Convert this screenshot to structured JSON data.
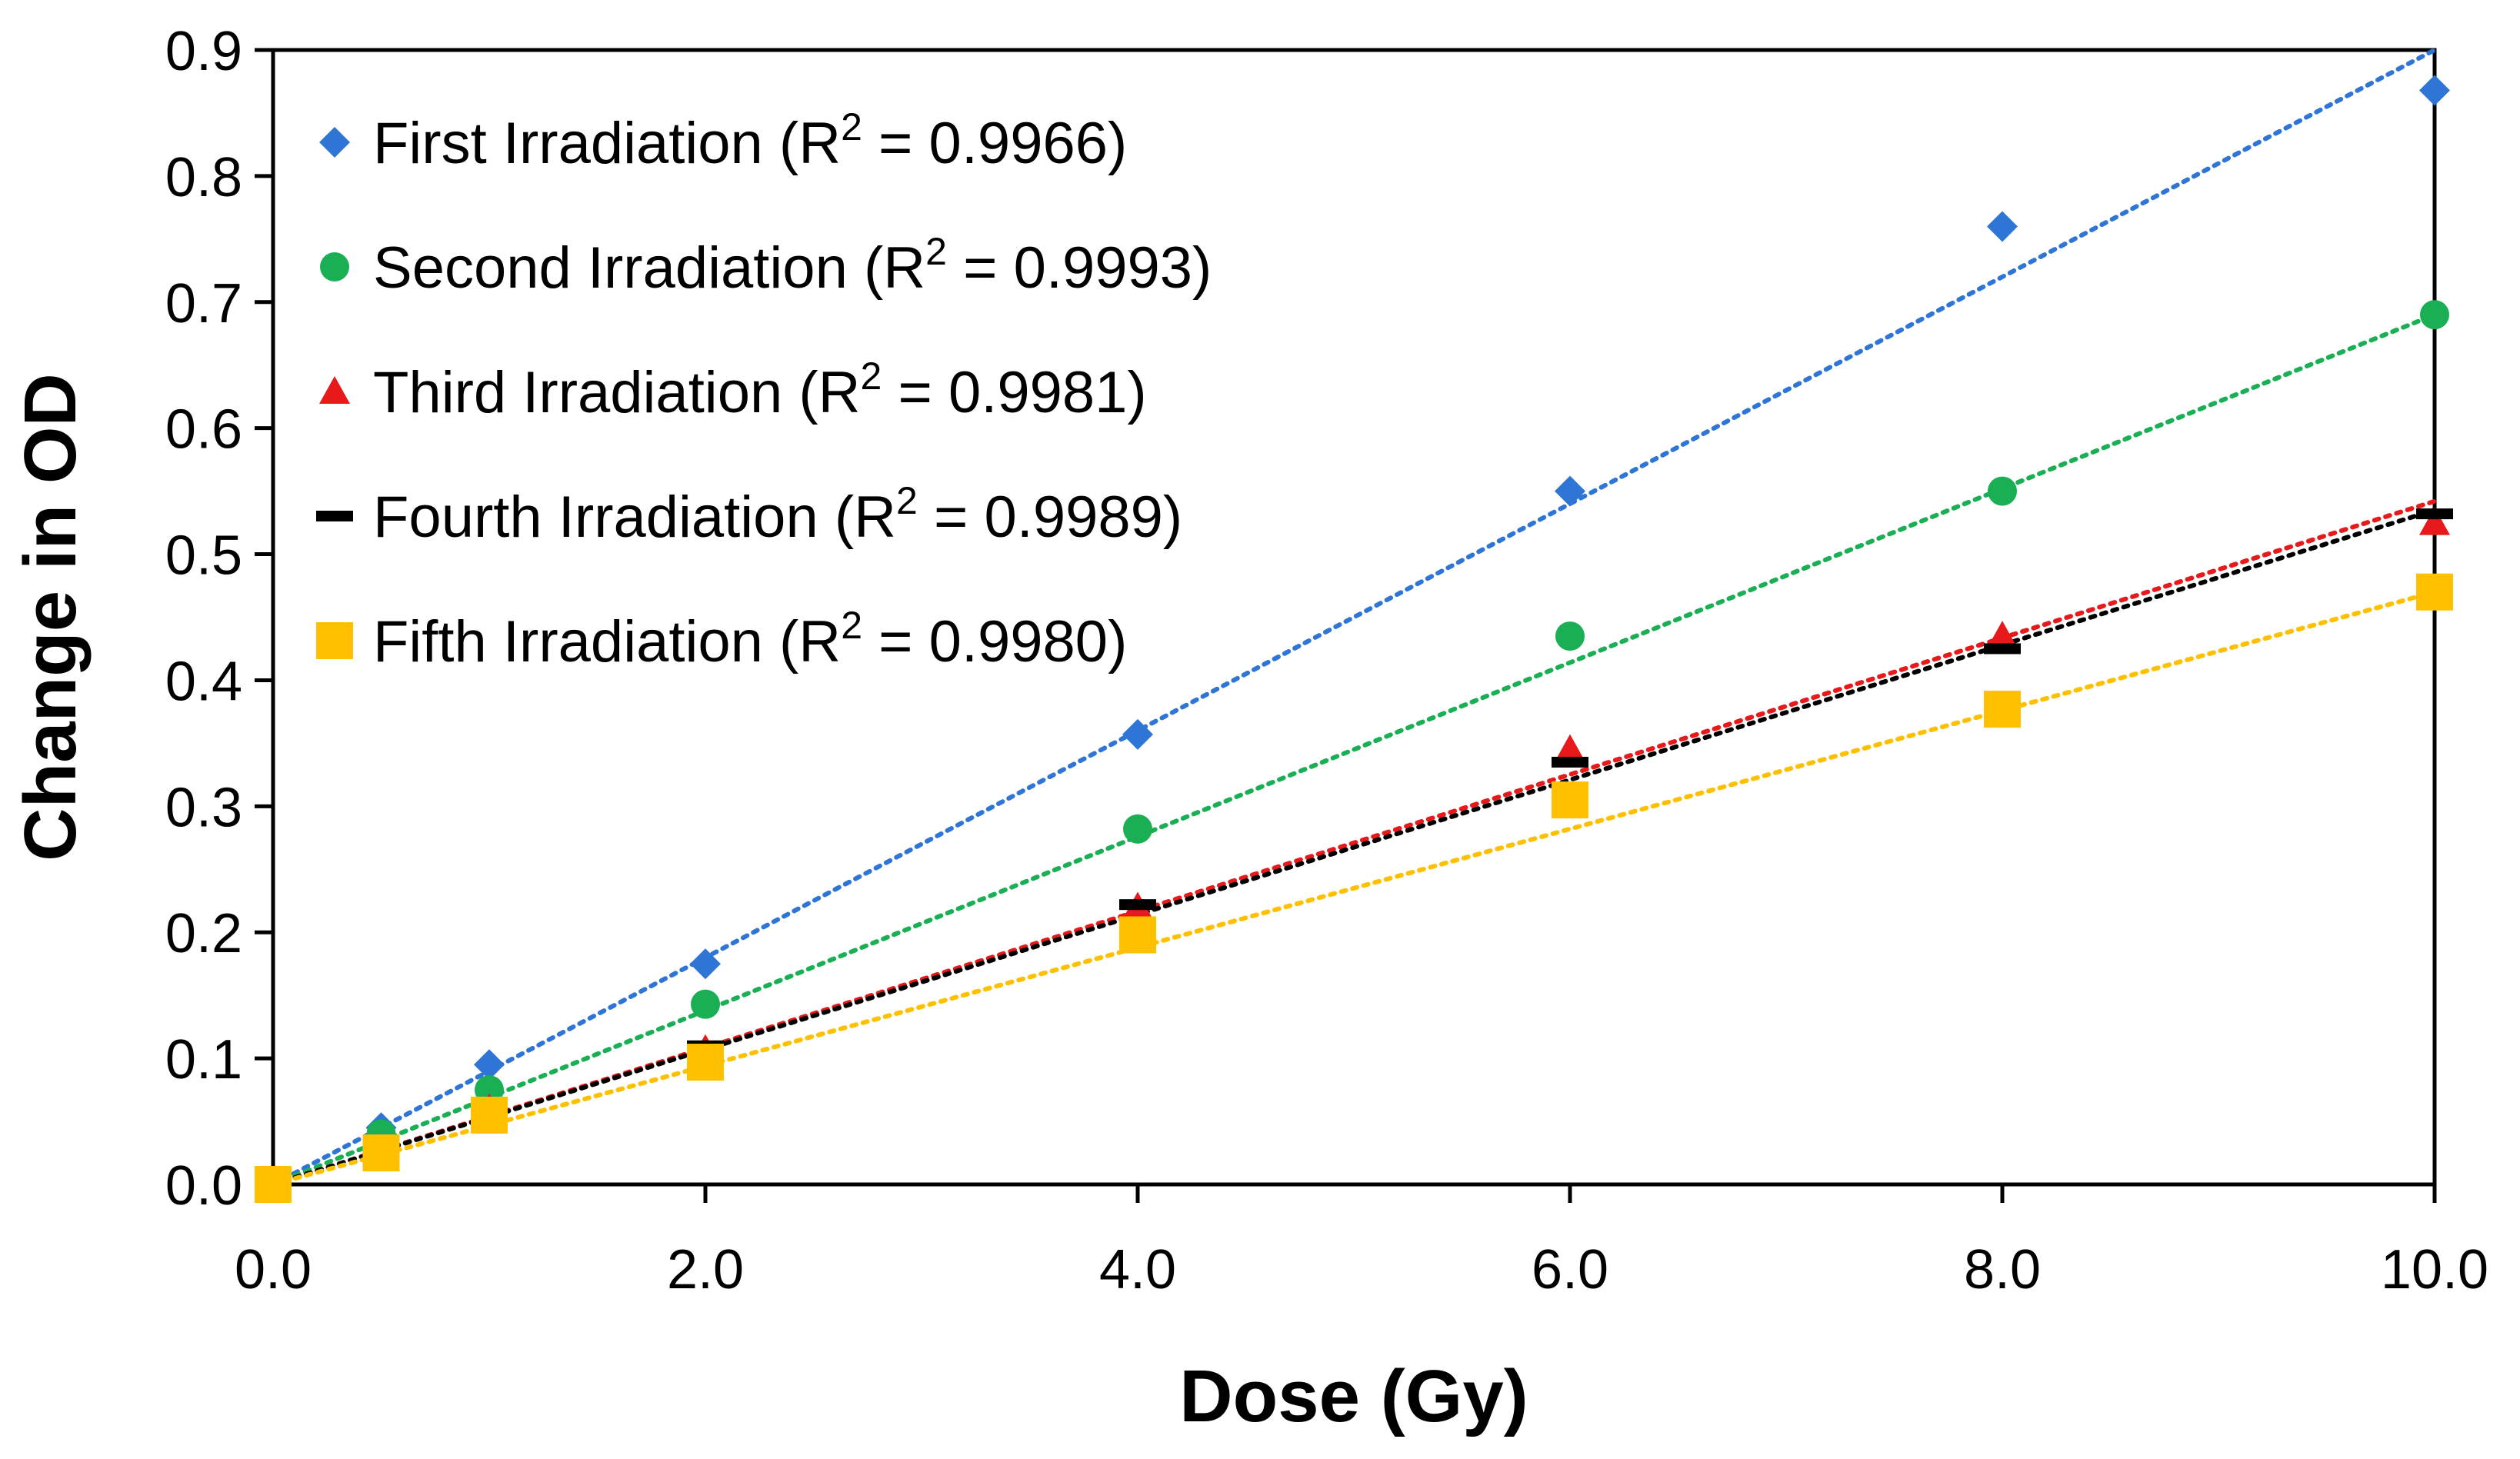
{
  "chart_data": {
    "type": "scatter",
    "title": "",
    "xlabel": "Dose (Gy)",
    "ylabel": "Change in OD",
    "xlim": [
      0,
      10
    ],
    "ylim": [
      0,
      0.9
    ],
    "xticks": [
      0,
      2,
      4,
      6,
      8,
      10
    ],
    "xtick_labels": [
      "0.0",
      "2.0",
      "4.0",
      "6.0",
      "8.0",
      "10.0"
    ],
    "yticks": [
      0,
      0.1,
      0.2,
      0.3,
      0.4,
      0.5,
      0.6,
      0.7,
      0.8,
      0.9
    ],
    "ytick_labels": [
      "0.0",
      "0.1",
      "0.2",
      "0.3",
      "0.4",
      "0.5",
      "0.6",
      "0.7",
      "0.8",
      "0.9"
    ],
    "grid": false,
    "legend_position": "top-left",
    "x": [
      0,
      0.5,
      1,
      2,
      4,
      6,
      8,
      10
    ],
    "series": [
      {
        "name": "First Irradiation",
        "label": "First Irradiation",
        "r2_prefix": "(R",
        "r2_suffix": " = 0.9966)",
        "marker": "diamond",
        "color": "#2E75D6",
        "trendline_slope": 0.09,
        "values": [
          0.0,
          0.045,
          0.095,
          0.175,
          0.357,
          0.55,
          0.76,
          0.868
        ]
      },
      {
        "name": "Second Irradiation",
        "label": "Second Irradiation",
        "r2_prefix": "(R",
        "r2_suffix": " = 0.9993)",
        "marker": "circle",
        "color": "#1AAF54",
        "trendline_slope": 0.069,
        "values": [
          0.0,
          0.04,
          0.075,
          0.143,
          0.282,
          0.435,
          0.55,
          0.69
        ]
      },
      {
        "name": "Third Irradiation",
        "label": "Third Irradiation",
        "r2_prefix": "(R",
        "r2_suffix": " = 0.9981)",
        "marker": "triangle",
        "color": "#E8191A",
        "trendline_slope": 0.0542,
        "values": [
          0.0,
          0.028,
          0.06,
          0.107,
          0.22,
          0.345,
          0.435,
          0.525
        ]
      },
      {
        "name": "Fourth Irradiation",
        "label": "Fourth Irradiation",
        "r2_prefix": "(R",
        "r2_suffix": " = 0.9989)",
        "marker": "dash",
        "color": "#000000",
        "trendline_slope": 0.0535,
        "values": [
          0.0,
          0.028,
          0.058,
          0.11,
          0.222,
          0.335,
          0.425,
          0.532
        ]
      },
      {
        "name": "Fifth Irradiation",
        "label": "Fifth Irradiation",
        "r2_prefix": "(R",
        "r2_suffix": " = 0.9980)",
        "marker": "square",
        "color": "#FFC000",
        "trendline_slope": 0.047,
        "values": [
          0.0,
          0.025,
          0.055,
          0.097,
          0.198,
          0.305,
          0.377,
          0.47
        ]
      }
    ]
  }
}
